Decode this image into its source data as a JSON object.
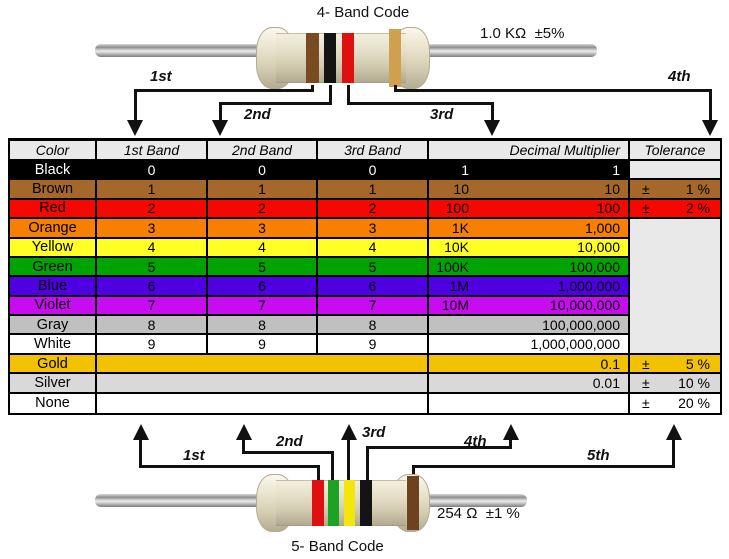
{
  "top_section": {
    "title": "4- Band Code",
    "value_label": "1.0 KΩ  ±5%",
    "arrow_labels": [
      "1st",
      "2nd",
      "3rd",
      "4th"
    ],
    "resistor_bands": [
      {
        "name": "brown",
        "color": "#7a4a21"
      },
      {
        "name": "black",
        "color": "#141414"
      },
      {
        "name": "red",
        "color": "#df1010"
      },
      {
        "name": "gold",
        "color": "#cfa04e"
      }
    ]
  },
  "table": {
    "headers": [
      "Color",
      "1st Band",
      "2nd Band",
      "3rd Band",
      "Decimal Multiplier",
      "Tolerance"
    ],
    "tolerance_sign": "±",
    "merged_tolerance_bg": "#e9e9e9",
    "rows": [
      {
        "name": "Black",
        "band1": "0",
        "band2": "0",
        "band3": "0",
        "mult_short": "1",
        "mult_full": "1",
        "tolerance": "",
        "bg": "#000000",
        "fg": "#ffffff",
        "tol_bg": "#e9e9e9"
      },
      {
        "name": "Brown",
        "band1": "1",
        "band2": "1",
        "band3": "1",
        "mult_short": "10",
        "mult_full": "10",
        "tolerance": "1 %",
        "bg": "#a5682a",
        "fg": "#000000"
      },
      {
        "name": "Red",
        "band1": "2",
        "band2": "2",
        "band3": "2",
        "mult_short": "100",
        "mult_full": "100",
        "tolerance": "2 %",
        "bg": "#f50800",
        "fg": "#000000"
      },
      {
        "name": "Orange",
        "band1": "3",
        "band2": "3",
        "band3": "3",
        "mult_short": "1K",
        "mult_full": "1,000",
        "tolerance": null,
        "bg": "#f88000",
        "fg": "#000000"
      },
      {
        "name": "Yellow",
        "band1": "4",
        "band2": "4",
        "band3": "4",
        "mult_short": "10K",
        "mult_full": "10,000",
        "tolerance": null,
        "bg": "#ffff25",
        "fg": "#000000"
      },
      {
        "name": "Green",
        "band1": "5",
        "band2": "5",
        "band3": "5",
        "mult_short": "100K",
        "mult_full": "100,000",
        "tolerance": null,
        "bg": "#00a400",
        "fg": "#000000"
      },
      {
        "name": "Blue",
        "band1": "6",
        "band2": "6",
        "band3": "6",
        "mult_short": "1M",
        "mult_full": "1,000,000",
        "tolerance": null,
        "bg": "#4e00e0",
        "fg": "#000000"
      },
      {
        "name": "Violet",
        "band1": "7",
        "band2": "7",
        "band3": "7",
        "mult_short": "10M",
        "mult_full": "10,000,000",
        "tolerance": null,
        "bg": "#c80cf0",
        "fg": "#000000"
      },
      {
        "name": "Gray",
        "band1": "8",
        "band2": "8",
        "band3": "8",
        "mult_short": "",
        "mult_full": "100,000,000",
        "tolerance": null,
        "bg": "#c0c0c0",
        "fg": "#000000"
      },
      {
        "name": "White",
        "band1": "9",
        "band2": "9",
        "band3": "9",
        "mult_short": "",
        "mult_full": "1,000,000,000",
        "tolerance": null,
        "bg": "#ffffff",
        "fg": "#000000"
      },
      {
        "name": "Gold",
        "merged_bands": true,
        "mult_short": "",
        "mult_full": "0.1",
        "tolerance": "5 %",
        "bg": "#f2c200",
        "fg": "#000000"
      },
      {
        "name": "Silver",
        "merged_bands": true,
        "mult_short": "",
        "mult_full": "0.01",
        "tolerance": "10 %",
        "bg": "#d9d9d9",
        "fg": "#000000"
      },
      {
        "name": "None",
        "merged_bands": true,
        "mult_short": "",
        "mult_full": "",
        "tolerance": "20 %",
        "bg": "#ffffff",
        "fg": "#000000"
      }
    ]
  },
  "bottom_section": {
    "title": "5- Band Code",
    "value_label": "254 Ω  ±1 %",
    "arrow_labels": [
      "1st",
      "2nd",
      "3rd",
      "4th",
      "5th"
    ],
    "resistor_bands": [
      {
        "name": "red",
        "color": "#df1010"
      },
      {
        "name": "green",
        "color": "#1da223"
      },
      {
        "name": "yellow",
        "color": "#f2e60a"
      },
      {
        "name": "black",
        "color": "#141414"
      },
      {
        "name": "brown",
        "color": "#6e421f"
      }
    ]
  }
}
